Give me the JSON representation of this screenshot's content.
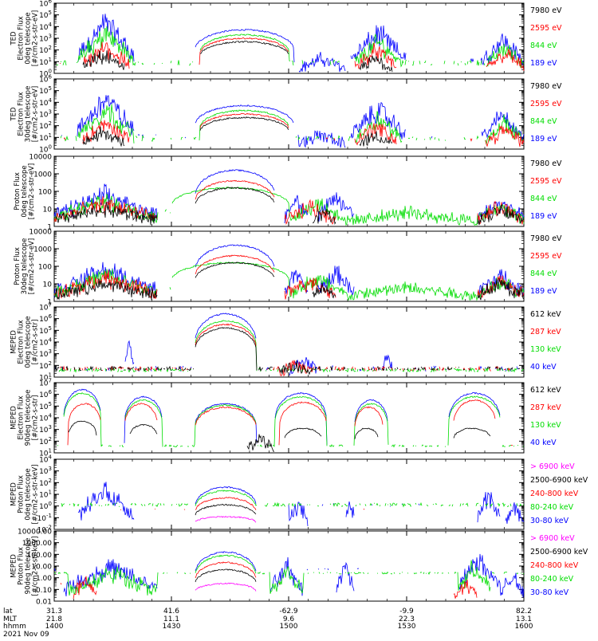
{
  "page": {
    "footer": {
      "row_labels": [
        "lat",
        "MLT",
        "hhmm",
        "2021 Nov 09"
      ],
      "columns": [
        {
          "lat": "31.3",
          "mlt": "21.8",
          "hhmm": "1400"
        },
        {
          "lat": "41.6",
          "mlt": "11.1",
          "hhmm": "1430"
        },
        {
          "lat": "-62.9",
          "mlt": "9.6",
          "hhmm": "1500"
        },
        {
          "lat": "-9.9",
          "mlt": "22.3",
          "hhmm": "1530"
        },
        {
          "lat": "82.2",
          "mlt": "13.1",
          "hhmm": "1600"
        }
      ]
    }
  },
  "colors": {
    "blue": "#0000ff",
    "red": "#ff0000",
    "green": "#00dd00",
    "black": "#000000",
    "magenta": "#ff00ff"
  },
  "chart_data": [
    {
      "type": "line",
      "ylabel": [
        "TED",
        "Electron Flux",
        "0deg telescope",
        "[#/cm2-s-str-eV]"
      ],
      "yscale": "log",
      "ylim_exp": [
        0,
        6
      ],
      "ticks": [
        "10^0",
        "10^1",
        "10^2",
        "10^3",
        "10^4",
        "10^5",
        "10^6"
      ],
      "legend": [
        {
          "label": "7980 eV",
          "color": "black"
        },
        {
          "label": "2595 eV",
          "color": "red"
        },
        {
          "label": "844 eV",
          "color": "green"
        },
        {
          "label": "189 eV",
          "color": "blue"
        }
      ]
    },
    {
      "type": "line",
      "ylabel": [
        "TED",
        "Electron Flux",
        "30deg telescope",
        "[#/cm2-s-str-eV]"
      ],
      "yscale": "log",
      "ylim_exp": [
        0,
        6
      ],
      "ticks": [
        "10^0",
        "10^1",
        "10^2",
        "10^3",
        "10^4",
        "10^5",
        "10^6"
      ],
      "legend": [
        {
          "label": "7980 eV",
          "color": "black"
        },
        {
          "label": "2595 eV",
          "color": "red"
        },
        {
          "label": "844 eV",
          "color": "green"
        },
        {
          "label": "189 eV",
          "color": "blue"
        }
      ]
    },
    {
      "type": "line",
      "ylabel": [
        "Proton Flux",
        "0deg telescope",
        "[#/cm2-s-str-eV]"
      ],
      "yscale": "log",
      "ylim_exp": [
        0,
        4
      ],
      "ticks": [
        "1",
        "10",
        "100",
        "1000",
        "10000"
      ],
      "legend": [
        {
          "label": "7980 eV",
          "color": "black"
        },
        {
          "label": "2595 eV",
          "color": "red"
        },
        {
          "label": "844 eV",
          "color": "green"
        },
        {
          "label": "189 eV",
          "color": "blue"
        }
      ]
    },
    {
      "type": "line",
      "ylabel": [
        "Proton Flux",
        "30deg telescope",
        "[#/cm2-s-str-eV]"
      ],
      "yscale": "log",
      "ylim_exp": [
        0,
        4
      ],
      "ticks": [
        "1",
        "10",
        "100",
        "1000",
        "10000"
      ],
      "legend": [
        {
          "label": "7980 eV",
          "color": "black"
        },
        {
          "label": "2595 eV",
          "color": "red"
        },
        {
          "label": "844 eV",
          "color": "green"
        },
        {
          "label": "189 eV",
          "color": "blue"
        }
      ]
    },
    {
      "type": "line",
      "ylabel": [
        "MEPED",
        "Electron Flux",
        "0deg telescope",
        "[#/cm2-s-str]"
      ],
      "yscale": "log",
      "ylim_exp": [
        1,
        7
      ],
      "ticks": [
        "10^1",
        "10^2",
        "10^3",
        "10^4",
        "10^5",
        "10^6",
        "10^7"
      ],
      "legend": [
        {
          "label": "612 keV",
          "color": "black"
        },
        {
          "label": "287 keV",
          "color": "red"
        },
        {
          "label": "130 keV",
          "color": "green"
        },
        {
          "label": "40 keV",
          "color": "blue"
        }
      ]
    },
    {
      "type": "line",
      "ylabel": [
        "MEPED",
        "Electron Flux",
        "90deg telescope",
        "[#/cm2-s-str]"
      ],
      "yscale": "log",
      "ylim_exp": [
        1,
        7
      ],
      "ticks": [
        "10^1",
        "10^2",
        "10^3",
        "10^4",
        "10^5",
        "10^6",
        "10^7"
      ],
      "legend": [
        {
          "label": "612 keV",
          "color": "black"
        },
        {
          "label": "287 keV",
          "color": "red"
        },
        {
          "label": "130 keV",
          "color": "green"
        },
        {
          "label": "40 keV",
          "color": "blue"
        }
      ]
    },
    {
      "type": "line",
      "ylabel": [
        "MEPED",
        "Proton Flux",
        "0deg telescope",
        "[#/cm2-s-str-keV]"
      ],
      "yscale": "log",
      "ylim_exp": [
        -2,
        4
      ],
      "ticks": [
        "10^-2",
        "10^-1",
        "10^0",
        "10^1",
        "10^2",
        "10^3",
        "10^4"
      ],
      "legend": [
        {
          "label": "> 6900 keV",
          "color": "magenta"
        },
        {
          "label": "2500-6900 keV",
          "color": "black"
        },
        {
          "label": "240-800 keV",
          "color": "red"
        },
        {
          "label": "80-240 keV",
          "color": "green"
        },
        {
          "label": "30-80 keV",
          "color": "blue"
        }
      ]
    },
    {
      "type": "line",
      "ylabel": [
        "MEPED",
        "Proton Flux",
        "90deg telescope",
        "[#/cm2-s-str-keV]"
      ],
      "yscale": "log",
      "ylim_exp": [
        -2,
        4
      ],
      "ticks": [
        "0.01",
        "0.10",
        "1.00",
        "10.00",
        "100.00",
        "1000.00",
        "10000.00"
      ],
      "legend": [
        {
          "label": "> 6900 keV",
          "color": "magenta"
        },
        {
          "label": "2500-6900 keV",
          "color": "black"
        },
        {
          "label": "240-800 keV",
          "color": "red"
        },
        {
          "label": "80-240 keV",
          "color": "green"
        },
        {
          "label": "30-80 keV",
          "color": "blue"
        }
      ]
    }
  ]
}
